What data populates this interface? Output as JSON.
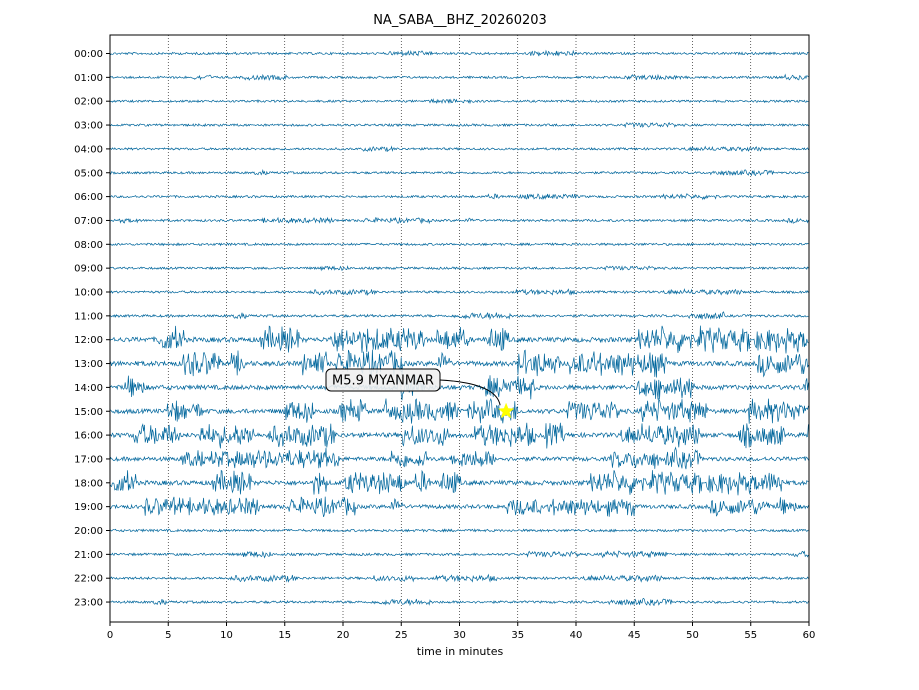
{
  "chart_data": {
    "type": "line",
    "title": "NA_SABA__BHZ_20260203",
    "xlabel": "time in minutes",
    "ylabel": "",
    "xlim": [
      0,
      60
    ],
    "xticks": [
      0,
      5,
      10,
      15,
      20,
      25,
      30,
      35,
      40,
      45,
      50,
      55,
      60
    ],
    "grid": "vertical dotted at x ticks",
    "trace_color": "#00669c",
    "rows": [
      {
        "label": "00:00",
        "activity": 0.15
      },
      {
        "label": "01:00",
        "activity": 0.15
      },
      {
        "label": "02:00",
        "activity": 0.12
      },
      {
        "label": "03:00",
        "activity": 0.15
      },
      {
        "label": "04:00",
        "activity": 0.12
      },
      {
        "label": "05:00",
        "activity": 0.15
      },
      {
        "label": "06:00",
        "activity": 0.15
      },
      {
        "label": "07:00",
        "activity": 0.15
      },
      {
        "label": "08:00",
        "activity": 0.15
      },
      {
        "label": "09:00",
        "activity": 0.12
      },
      {
        "label": "10:00",
        "activity": 0.15
      },
      {
        "label": "11:00",
        "activity": 0.22
      },
      {
        "label": "12:00",
        "activity": 1.0
      },
      {
        "label": "13:00",
        "activity": 1.0
      },
      {
        "label": "14:00",
        "activity": 0.9
      },
      {
        "label": "15:00",
        "activity": 0.9
      },
      {
        "label": "16:00",
        "activity": 0.9
      },
      {
        "label": "17:00",
        "activity": 0.75
      },
      {
        "label": "18:00",
        "activity": 0.9
      },
      {
        "label": "19:00",
        "activity": 0.7
      },
      {
        "label": "20:00",
        "activity": 0.2
      },
      {
        "label": "21:00",
        "activity": 0.2
      },
      {
        "label": "22:00",
        "activity": 0.2
      },
      {
        "label": "23:00",
        "activity": 0.2
      }
    ],
    "event_marker": {
      "row": "15:00",
      "x": 34.0,
      "label": "M5.9 MYANMAR",
      "marker": "star",
      "marker_color": "#ffff00"
    }
  }
}
